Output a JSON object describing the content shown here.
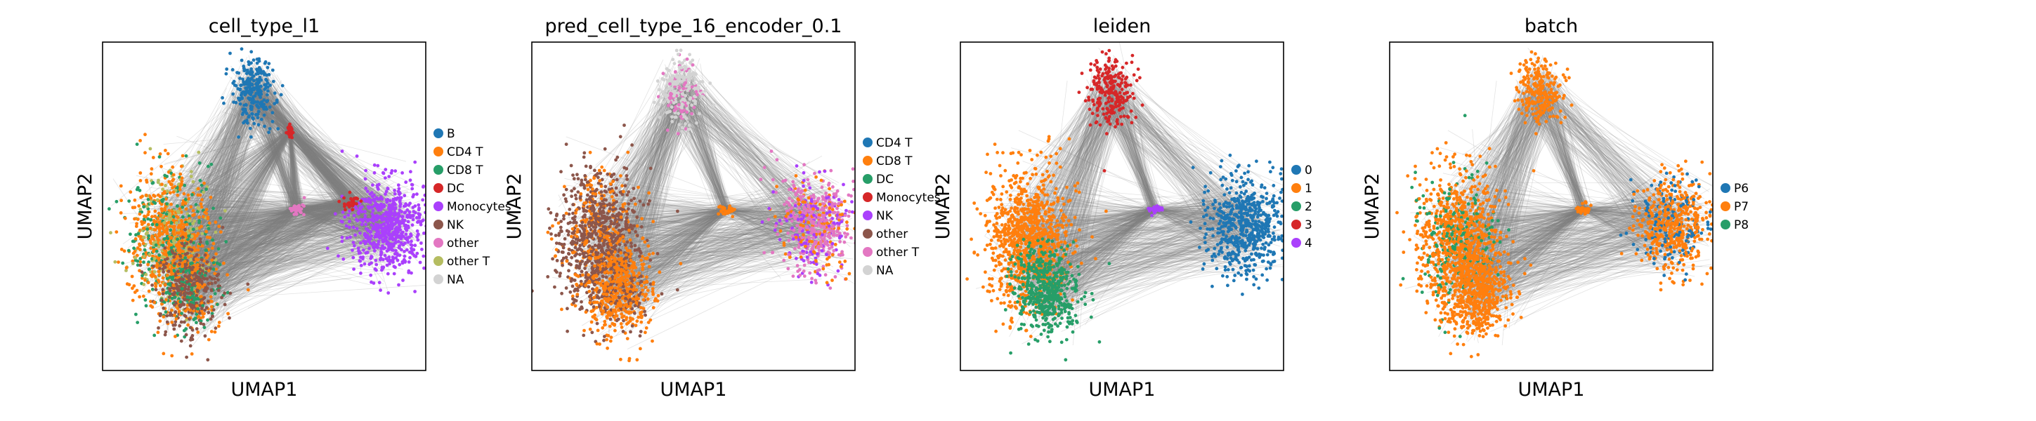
{
  "chart_data": [
    {
      "type": "scatter",
      "title": "cell_type_l1",
      "xlabel": "UMAP1",
      "ylabel": "UMAP2",
      "grid": false,
      "ticks": false,
      "legend_position": "right",
      "edge_color": "#808080",
      "legend": [
        {
          "label": "B",
          "color": "#1f77b4"
        },
        {
          "label": "CD4 T",
          "color": "#ff7f0e"
        },
        {
          "label": "CD8 T",
          "color": "#279e68"
        },
        {
          "label": "DC",
          "color": "#d62728"
        },
        {
          "label": "Monocytes",
          "color": "#aa40fc"
        },
        {
          "label": "NK",
          "color": "#8c564b"
        },
        {
          "label": "other",
          "color": "#e377c2"
        },
        {
          "label": "other T",
          "color": "#b5bd61"
        },
        {
          "label": "NA",
          "color": "#d3d3d3"
        }
      ],
      "clusters": [
        {
          "center": [
            0.465,
            0.85
          ],
          "size": [
            0.08,
            0.12
          ],
          "colors": [
            "#1f77b4"
          ]
        },
        {
          "center": [
            0.21,
            0.4
          ],
          "size": [
            0.15,
            0.25
          ],
          "colors": [
            "#ff7f0e",
            "#279e68",
            "#b5bd61"
          ]
        },
        {
          "center": [
            0.27,
            0.24
          ],
          "size": [
            0.12,
            0.16
          ],
          "colors": [
            "#8c564b",
            "#279e68",
            "#ff7f0e"
          ]
        },
        {
          "center": [
            0.88,
            0.44
          ],
          "size": [
            0.14,
            0.17
          ],
          "colors": [
            "#aa40fc"
          ]
        },
        {
          "center": [
            0.77,
            0.51
          ],
          "size": [
            0.03,
            0.03
          ],
          "colors": [
            "#d62728"
          ]
        },
        {
          "center": [
            0.6,
            0.49
          ],
          "size": [
            0.03,
            0.02
          ],
          "colors": [
            "#e377c2"
          ]
        },
        {
          "center": [
            0.58,
            0.73
          ],
          "size": [
            0.01,
            0.02
          ],
          "colors": [
            "#d62728"
          ]
        }
      ]
    },
    {
      "type": "scatter",
      "title": "pred_cell_type_16_encoder_0.1",
      "xlabel": "UMAP1",
      "ylabel": "UMAP2",
      "grid": false,
      "ticks": false,
      "legend_position": "right",
      "edge_color": "#808080",
      "legend": [
        {
          "label": "CD4 T",
          "color": "#1f77b4"
        },
        {
          "label": "CD8 T",
          "color": "#ff7f0e"
        },
        {
          "label": "DC",
          "color": "#279e68"
        },
        {
          "label": "Monocytes",
          "color": "#d62728"
        },
        {
          "label": "NK",
          "color": "#aa40fc"
        },
        {
          "label": "other",
          "color": "#8c564b"
        },
        {
          "label": "other T",
          "color": "#e377c2"
        },
        {
          "label": "NA",
          "color": "#d3d3d3"
        }
      ],
      "clusters": [
        {
          "center": [
            0.465,
            0.85
          ],
          "size": [
            0.08,
            0.12
          ],
          "colors": [
            "#d3d3d3",
            "#e377c2"
          ]
        },
        {
          "center": [
            0.21,
            0.4
          ],
          "size": [
            0.15,
            0.25
          ],
          "colors": [
            "#8c564b",
            "#ff7f0e"
          ]
        },
        {
          "center": [
            0.27,
            0.24
          ],
          "size": [
            0.12,
            0.16
          ],
          "colors": [
            "#ff7f0e",
            "#8c564b"
          ]
        },
        {
          "center": [
            0.88,
            0.44
          ],
          "size": [
            0.14,
            0.17
          ],
          "colors": [
            "#e377c2",
            "#ff7f0e",
            "#aa40fc"
          ]
        },
        {
          "center": [
            0.6,
            0.49
          ],
          "size": [
            0.03,
            0.02
          ],
          "colors": [
            "#ff7f0e"
          ]
        }
      ]
    },
    {
      "type": "scatter",
      "title": "leiden",
      "xlabel": "UMAP1",
      "ylabel": "UMAP2",
      "grid": false,
      "ticks": false,
      "legend_position": "right",
      "edge_color": "#808080",
      "legend": [
        {
          "label": "0",
          "color": "#1f77b4"
        },
        {
          "label": "1",
          "color": "#ff7f0e"
        },
        {
          "label": "2",
          "color": "#279e68"
        },
        {
          "label": "3",
          "color": "#d62728"
        },
        {
          "label": "4",
          "color": "#aa40fc"
        }
      ],
      "clusters": [
        {
          "center": [
            0.465,
            0.85
          ],
          "size": [
            0.08,
            0.12
          ],
          "colors": [
            "#d62728"
          ]
        },
        {
          "center": [
            0.21,
            0.4
          ],
          "size": [
            0.15,
            0.25
          ],
          "colors": [
            "#ff7f0e"
          ]
        },
        {
          "center": [
            0.27,
            0.24
          ],
          "size": [
            0.12,
            0.16
          ],
          "colors": [
            "#279e68"
          ]
        },
        {
          "center": [
            0.88,
            0.44
          ],
          "size": [
            0.14,
            0.17
          ],
          "colors": [
            "#1f77b4"
          ]
        },
        {
          "center": [
            0.6,
            0.49
          ],
          "size": [
            0.03,
            0.02
          ],
          "colors": [
            "#aa40fc"
          ]
        }
      ]
    },
    {
      "type": "scatter",
      "title": "batch",
      "xlabel": "UMAP1",
      "ylabel": "UMAP2",
      "grid": false,
      "ticks": false,
      "legend_position": "right",
      "edge_color": "#808080",
      "legend": [
        {
          "label": "P6",
          "color": "#1f77b4"
        },
        {
          "label": "P7",
          "color": "#ff7f0e"
        },
        {
          "label": "P8",
          "color": "#279e68"
        }
      ],
      "clusters": [
        {
          "center": [
            0.465,
            0.85
          ],
          "size": [
            0.08,
            0.12
          ],
          "colors": [
            "#ff7f0e"
          ]
        },
        {
          "center": [
            0.21,
            0.4
          ],
          "size": [
            0.15,
            0.25
          ],
          "colors": [
            "#ff7f0e",
            "#279e68"
          ]
        },
        {
          "center": [
            0.27,
            0.24
          ],
          "size": [
            0.12,
            0.16
          ],
          "colors": [
            "#ff7f0e"
          ]
        },
        {
          "center": [
            0.88,
            0.44
          ],
          "size": [
            0.14,
            0.17
          ],
          "colors": [
            "#ff7f0e",
            "#1f77b4"
          ]
        },
        {
          "center": [
            0.6,
            0.49
          ],
          "size": [
            0.03,
            0.02
          ],
          "colors": [
            "#ff7f0e"
          ]
        }
      ]
    }
  ]
}
